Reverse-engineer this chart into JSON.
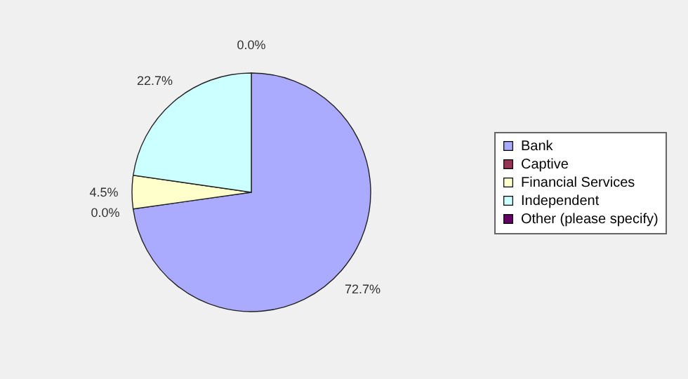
{
  "chart_data": {
    "type": "pie",
    "categories": [
      "Bank",
      "Captive",
      "Financial Services",
      "Independent",
      "Other (please specify)"
    ],
    "values": [
      72.7,
      0.0,
      4.5,
      22.7,
      0.0
    ],
    "colors": [
      "#aaaaff",
      "#993355",
      "#ffffcc",
      "#ccffff",
      "#660066"
    ],
    "value_labels": [
      "72.7%",
      "0.0%",
      "4.5%",
      "22.7%",
      "0.0%"
    ],
    "legend": "right"
  }
}
